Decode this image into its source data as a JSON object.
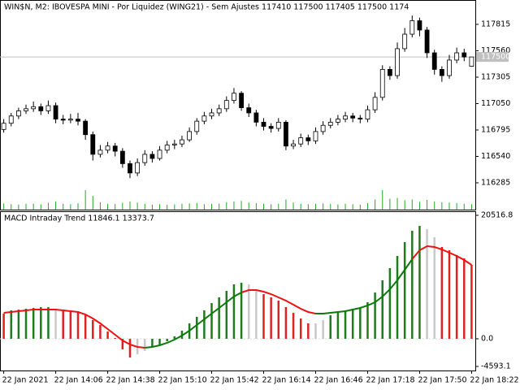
{
  "chart_data": [
    {
      "type": "candlestick",
      "title": "WIN$N, M2:  IBOVESPA MINI - Por Liquidez (WING21) - Sem Ajustes  117410 117500 117405 117500  1174",
      "categories": [
        "22 Jan 2021",
        null,
        null,
        null,
        null,
        null,
        null,
        "22 Jan 14:06",
        null,
        null,
        null,
        null,
        null,
        null,
        "22 Jan 14:38",
        null,
        null,
        null,
        null,
        null,
        null,
        "22 Jan 15:10",
        null,
        null,
        null,
        null,
        null,
        null,
        "22 Jan 15:42",
        null,
        null,
        null,
        null,
        null,
        null,
        "22 Jan 16:14",
        null,
        null,
        null,
        null,
        null,
        null,
        "22 Jan 16:46",
        null,
        null,
        null,
        null,
        null,
        null,
        "22 Jan 17:18",
        null,
        null,
        null,
        null,
        null,
        null,
        "22 Jan 17:50",
        null,
        null,
        null,
        null,
        null,
        null,
        "22 Jan 18:22"
      ],
      "ohlc": [
        [
          116800,
          116900,
          116770,
          116860
        ],
        [
          116860,
          116960,
          116830,
          116930
        ],
        [
          116930,
          117010,
          116900,
          116980
        ],
        [
          116980,
          117040,
          116950,
          117000
        ],
        [
          117000,
          117070,
          116970,
          117020
        ],
        [
          117020,
          117050,
          116940,
          116980
        ],
        [
          116980,
          117080,
          116950,
          117030
        ],
        [
          117030,
          117060,
          116860,
          116900
        ],
        [
          116900,
          116940,
          116850,
          116890
        ],
        [
          116890,
          116950,
          116860,
          116900
        ],
        [
          116900,
          116960,
          116840,
          116880
        ],
        [
          116880,
          116900,
          116700,
          116750
        ],
        [
          116750,
          116780,
          116500,
          116560
        ],
        [
          116560,
          116650,
          116530,
          116600
        ],
        [
          116600,
          116680,
          116570,
          116640
        ],
        [
          116640,
          116670,
          116540,
          116590
        ],
        [
          116590,
          116620,
          116430,
          116470
        ],
        [
          116470,
          116500,
          116330,
          116380
        ],
        [
          116380,
          116520,
          116350,
          116480
        ],
        [
          116480,
          116600,
          116450,
          116560
        ],
        [
          116560,
          116590,
          116480,
          116520
        ],
        [
          116520,
          116640,
          116500,
          116600
        ],
        [
          116600,
          116690,
          116570,
          116650
        ],
        [
          116650,
          116700,
          116610,
          116660
        ],
        [
          116660,
          116740,
          116630,
          116700
        ],
        [
          116700,
          116820,
          116680,
          116780
        ],
        [
          116780,
          116910,
          116750,
          116880
        ],
        [
          116880,
          116970,
          116850,
          116930
        ],
        [
          116930,
          117000,
          116900,
          116960
        ],
        [
          116960,
          117040,
          116930,
          117000
        ],
        [
          117000,
          117120,
          116970,
          117080
        ],
        [
          117080,
          117200,
          117050,
          117150
        ],
        [
          117150,
          117170,
          116980,
          117010
        ],
        [
          117010,
          117050,
          116920,
          116960
        ],
        [
          116960,
          116990,
          116830,
          116870
        ],
        [
          116870,
          116910,
          116790,
          116830
        ],
        [
          116830,
          116860,
          116770,
          116810
        ],
        [
          116810,
          116910,
          116780,
          116870
        ],
        [
          116870,
          116890,
          116600,
          116640
        ],
        [
          116640,
          116700,
          116610,
          116660
        ],
        [
          116660,
          116760,
          116630,
          116720
        ],
        [
          116720,
          116750,
          116650,
          116690
        ],
        [
          116690,
          116820,
          116660,
          116780
        ],
        [
          116780,
          116880,
          116750,
          116840
        ],
        [
          116840,
          116910,
          116810,
          116870
        ],
        [
          116870,
          116940,
          116840,
          116900
        ],
        [
          116900,
          116970,
          116870,
          116930
        ],
        [
          116930,
          116960,
          116870,
          116910
        ],
        [
          116910,
          116940,
          116860,
          116900
        ],
        [
          116900,
          117030,
          116870,
          116990
        ],
        [
          116990,
          117160,
          116960,
          117110
        ],
        [
          117110,
          117420,
          117080,
          117380
        ],
        [
          117380,
          117410,
          117280,
          117320
        ],
        [
          117320,
          117640,
          117290,
          117580
        ],
        [
          117580,
          117780,
          117550,
          117720
        ],
        [
          117720,
          117900,
          117690,
          117850
        ],
        [
          117850,
          117880,
          117700,
          117760
        ],
        [
          117760,
          117790,
          117490,
          117540
        ],
        [
          117540,
          117570,
          117330,
          117380
        ],
        [
          117380,
          117410,
          117260,
          117320
        ],
        [
          117320,
          117520,
          117290,
          117470
        ],
        [
          117470,
          117590,
          117440,
          117540
        ],
        [
          117540,
          117580,
          117460,
          117500
        ],
        [
          117410,
          117500,
          117405,
          117500
        ]
      ],
      "volume": [
        320,
        280,
        260,
        300,
        310,
        270,
        350,
        420,
        300,
        280,
        330,
        1000,
        700,
        380,
        300,
        290,
        350,
        420,
        360,
        300,
        260,
        280,
        250,
        270,
        300,
        320,
        340,
        280,
        300,
        310,
        380,
        420,
        450,
        360,
        330,
        300,
        280,
        300,
        520,
        360,
        300,
        280,
        300,
        320,
        290,
        270,
        300,
        280,
        260,
        330,
        520,
        1000,
        560,
        600,
        480,
        520,
        400,
        500,
        420,
        380,
        360,
        340,
        300,
        280
      ],
      "volume_color": "#22aa22",
      "last_price": 117500,
      "ylim": [
        116026,
        118050
      ],
      "yticks": [
        116285,
        116540,
        116795,
        117050,
        117305,
        117560,
        117815
      ]
    },
    {
      "type": "macd",
      "title": "MACD Intraday Trend  11846.1 13373.7",
      "values": [
        4185,
        4725,
        4860,
        4995,
        5130,
        5265,
        5265,
        4995,
        4860,
        4725,
        4590,
        3915,
        3105,
        2295,
        1215,
        135,
        -1755,
        -3105,
        -2565,
        -2025,
        -1485,
        -945,
        -405,
        405,
        1350,
        2565,
        3645,
        4725,
        5940,
        6885,
        7965,
        9045,
        9315,
        9045,
        8235,
        7425,
        6885,
        6345,
        5265,
        4320,
        3375,
        2565,
        2565,
        3105,
        3915,
        4455,
        4725,
        4995,
        5265,
        6075,
        7695,
        9720,
        11745,
        13770,
        16065,
        17955,
        18765,
        18225,
        16875,
        15255,
        14715,
        13905,
        13365,
        12285
      ],
      "bar_colors": [
        "#dd2222",
        "#1e7b1e",
        "#1e7b1e",
        "#1e7b1e",
        "#1e7b1e",
        "#1e7b1e",
        "#1e7b1e",
        "#c8c8c8",
        "#dd2222",
        "#dd2222",
        "#dd2222",
        "#dd2222",
        "#dd2222",
        "#dd2222",
        "#dd2222",
        "#dd2222",
        "#dd2222",
        "#dd2222",
        "#c8c8c8",
        "#c8c8c8",
        "#1e7b1e",
        "#1e7b1e",
        "#1e7b1e",
        "#1e7b1e",
        "#1e7b1e",
        "#1e7b1e",
        "#1e7b1e",
        "#1e7b1e",
        "#1e7b1e",
        "#1e7b1e",
        "#1e7b1e",
        "#1e7b1e",
        "#1e7b1e",
        "#c8c8c8",
        "#c8c8c8",
        "#dd2222",
        "#dd2222",
        "#dd2222",
        "#dd2222",
        "#dd2222",
        "#dd2222",
        "#dd2222",
        "#c8c8c8",
        "#c8c8c8",
        "#1e7b1e",
        "#1e7b1e",
        "#1e7b1e",
        "#1e7b1e",
        "#1e7b1e",
        "#1e7b1e",
        "#1e7b1e",
        "#1e7b1e",
        "#1e7b1e",
        "#1e7b1e",
        "#1e7b1e",
        "#1e7b1e",
        "#1e7b1e",
        "#c8c8c8",
        "#c8c8c8",
        "#dd2222",
        "#dd2222",
        "#dd2222",
        "#dd2222",
        "#dd2222"
      ],
      "line": [
        4320,
        4455,
        4590,
        4725,
        4860,
        4860,
        4860,
        4860,
        4725,
        4590,
        4455,
        4050,
        3375,
        2565,
        1620,
        675,
        -270,
        -945,
        -1350,
        -1485,
        -1350,
        -1080,
        -675,
        -135,
        540,
        1350,
        2295,
        3240,
        4185,
        5130,
        6075,
        7020,
        7695,
        8100,
        8100,
        7830,
        7425,
        6885,
        6345,
        5670,
        4995,
        4455,
        4185,
        4185,
        4320,
        4455,
        4590,
        4860,
        5130,
        5535,
        6075,
        7020,
        8235,
        9720,
        11475,
        13230,
        14715,
        15390,
        15255,
        14850,
        14310,
        13770,
        13095,
        12285
      ],
      "line_colors": [
        "#ee1111",
        "#ee1111",
        "#ee1111",
        "#ee1111",
        "#ee1111",
        "#ee1111",
        "#ee1111",
        "#ee1111",
        "#ee1111",
        "#ee1111",
        "#ee1111",
        "#ee1111",
        "#ee1111",
        "#ee1111",
        "#ee1111",
        "#ee1111",
        "#ee1111",
        "#ee1111",
        "#ee1111",
        "#ee1111",
        "#0a7a0a",
        "#0a7a0a",
        "#0a7a0a",
        "#0a7a0a",
        "#0a7a0a",
        "#0a7a0a",
        "#0a7a0a",
        "#0a7a0a",
        "#0a7a0a",
        "#0a7a0a",
        "#0a7a0a",
        "#0a7a0a",
        "#0a7a0a",
        "#ee1111",
        "#ee1111",
        "#ee1111",
        "#ee1111",
        "#ee1111",
        "#ee1111",
        "#ee1111",
        "#ee1111",
        "#ee1111",
        "#ee1111",
        "#0a7a0a",
        "#0a7a0a",
        "#0a7a0a",
        "#0a7a0a",
        "#0a7a0a",
        "#0a7a0a",
        "#0a7a0a",
        "#0a7a0a",
        "#0a7a0a",
        "#0a7a0a",
        "#0a7a0a",
        "#0a7a0a",
        "#0a7a0a",
        "#ee1111",
        "#ee1111",
        "#ee1111",
        "#ee1111",
        "#ee1111",
        "#ee1111",
        "#ee1111",
        "#ee1111"
      ],
      "ylim": [
        -4593.1,
        20516.8
      ],
      "yticks": [
        20516.8,
        {
          "value": 0,
          "label": "0.0"
        },
        -4593.1
      ]
    }
  ]
}
